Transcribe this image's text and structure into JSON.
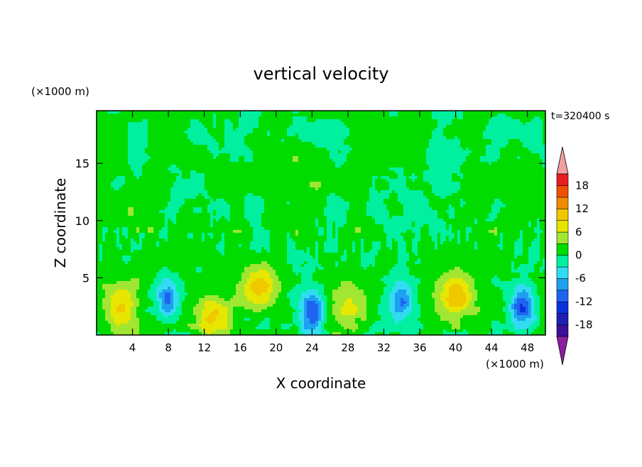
{
  "chart_data": {
    "type": "heatmap",
    "title": "vertical velocity",
    "xlabel": "X coordinate",
    "ylabel": "Z coordinate",
    "x_unit": "(×1000 m)",
    "y_unit": "(×1000 m)",
    "time_label": "t=320400 s",
    "xlim": [
      0,
      50
    ],
    "ylim": [
      0,
      19.6
    ],
    "x_ticks": [
      4,
      8,
      12,
      16,
      20,
      24,
      28,
      32,
      36,
      40,
      44,
      48
    ],
    "y_ticks": [
      5,
      10,
      15
    ],
    "colorbar": {
      "levels": [
        -21,
        -18,
        -15,
        -12,
        -9,
        -6,
        -3,
        0,
        3,
        6,
        9,
        12,
        15,
        18,
        21
      ],
      "tick_labels": [
        18,
        12,
        6,
        0,
        -6,
        -12,
        -18
      ],
      "colors": [
        "#3c0f96",
        "#1e1eb4",
        "#0a32dc",
        "#1e64f0",
        "#1ea0f0",
        "#32dcf0",
        "#00f0a0",
        "#00dc00",
        "#a0e632",
        "#e6e600",
        "#f0c800",
        "#f08c00",
        "#f05000",
        "#e61e1e"
      ],
      "under_color": "#8c1ea0",
      "over_color": "#f0a0a0"
    },
    "grid": false,
    "features": [
      {
        "kind": "updraft",
        "x": 2.8,
        "z": 2.6,
        "w": 9
      },
      {
        "kind": "updraft",
        "x": 13.0,
        "z": 1.5,
        "w": 9
      },
      {
        "kind": "updraft",
        "x": 18.2,
        "z": 4.2,
        "w": 10
      },
      {
        "kind": "updraft",
        "x": 28.0,
        "z": 2.6,
        "w": 7
      },
      {
        "kind": "updraft",
        "x": 40.0,
        "z": 3.4,
        "w": 11
      },
      {
        "kind": "downdraft",
        "x": 8.0,
        "z": 3.2,
        "w": -10
      },
      {
        "kind": "downdraft",
        "x": 24.0,
        "z": 2.0,
        "w": -13
      },
      {
        "kind": "downdraft",
        "x": 34.0,
        "z": 3.0,
        "w": -10
      },
      {
        "kind": "downdraft",
        "x": 47.5,
        "z": 2.5,
        "w": -13
      }
    ]
  }
}
